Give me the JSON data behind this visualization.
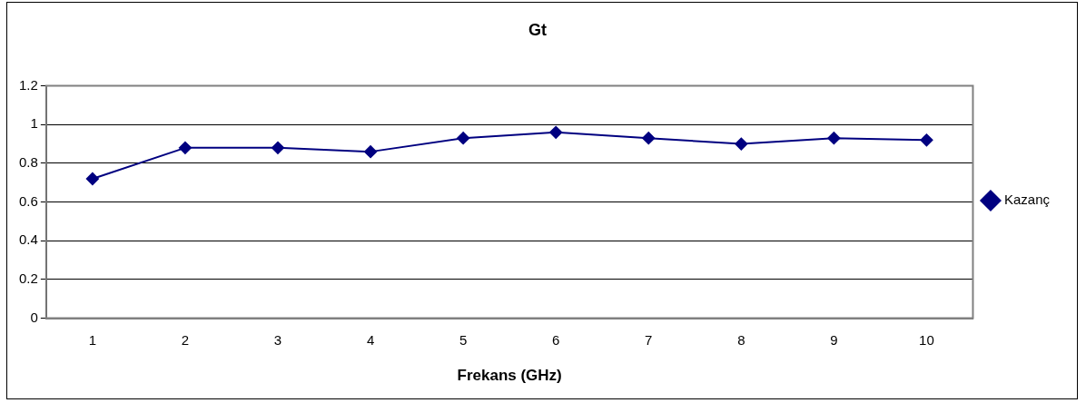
{
  "chart_data": {
    "type": "line",
    "title": "Gt",
    "xlabel": "Frekans (GHz)",
    "categories": [
      "1",
      "2",
      "3",
      "4",
      "5",
      "6",
      "7",
      "8",
      "9",
      "10"
    ],
    "series": [
      {
        "name": "Kazanç",
        "color": "#000080",
        "values": [
          0.72,
          0.88,
          0.88,
          0.86,
          0.93,
          0.96,
          0.93,
          0.9,
          0.93,
          0.92
        ]
      }
    ],
    "ylim": [
      0,
      1.2
    ],
    "yticks": [
      0,
      0.2,
      0.4,
      0.6,
      0.8,
      1,
      1.2
    ],
    "grid": "y",
    "legend": "right",
    "marker": "diamond",
    "line_style": "solid"
  }
}
